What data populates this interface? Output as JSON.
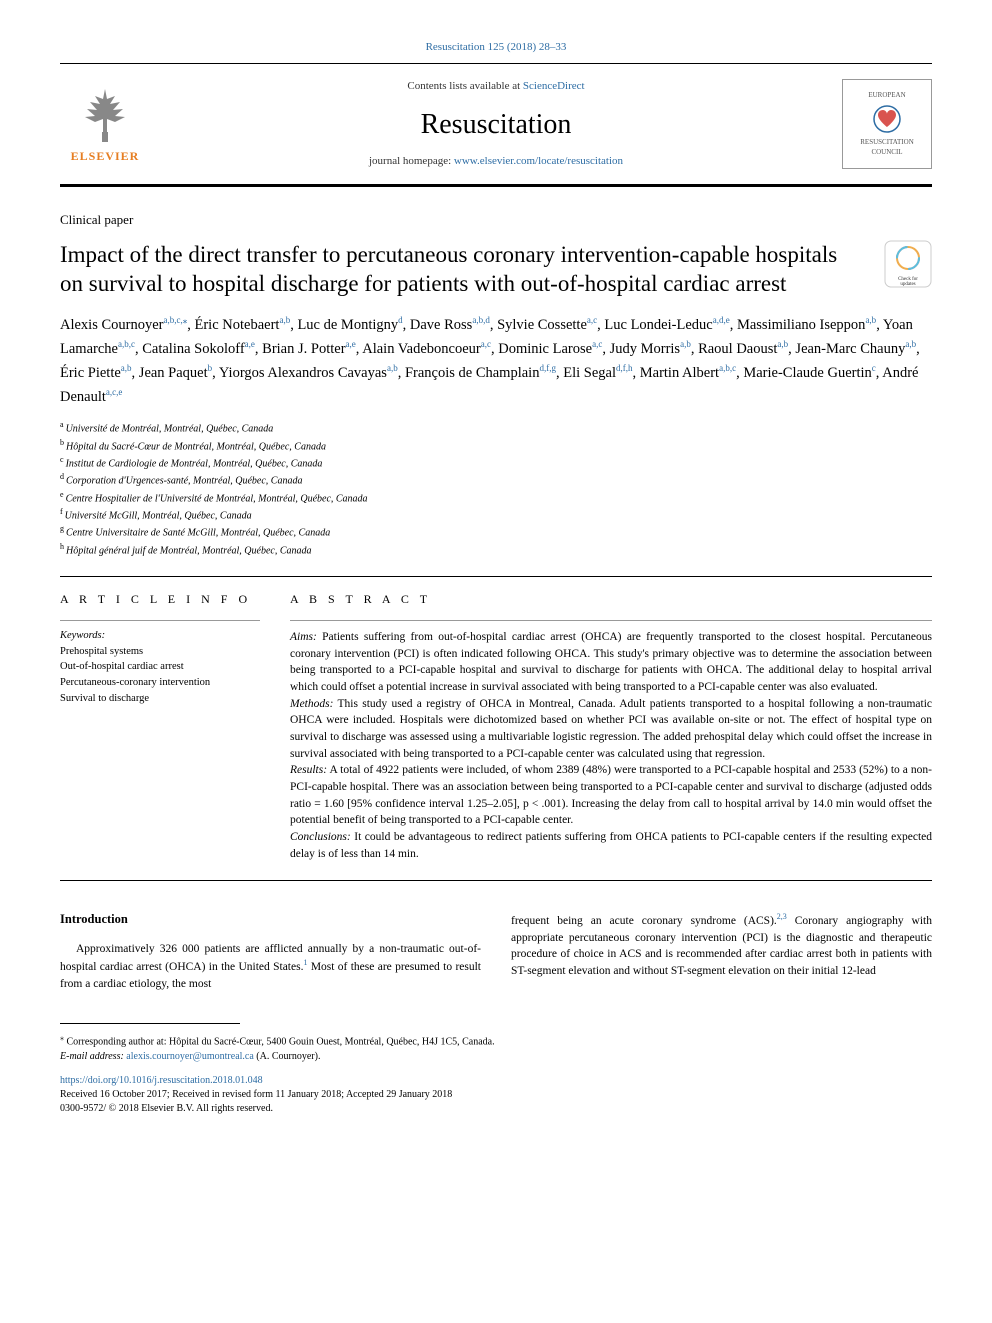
{
  "journal_ref": "Resuscitation 125 (2018) 28–33",
  "header": {
    "contents_prefix": "Contents lists available at ",
    "contents_link": "ScienceDirect",
    "journal_name": "Resuscitation",
    "homepage_prefix": "journal homepage: ",
    "homepage_link": "www.elsevier.com/locate/resuscitation",
    "elsevier_label": "ELSEVIER",
    "erc_top": "EUROPEAN",
    "erc_mid": "RESUSCITATION",
    "erc_bot": "COUNCIL"
  },
  "article_type": "Clinical paper",
  "title": "Impact of the direct transfer to percutaneous coronary intervention-capable hospitals on survival to hospital discharge for patients with out-of-hospital cardiac arrest",
  "crossmark_label": "Check for updates",
  "authors": [
    {
      "name": "Alexis Cournoyer",
      "aff": "a,b,c,",
      "star": "⁎"
    },
    {
      "name": "Éric Notebaert",
      "aff": "a,b"
    },
    {
      "name": "Luc de Montigny",
      "aff": "d"
    },
    {
      "name": "Dave Ross",
      "aff": "a,b,d"
    },
    {
      "name": "Sylvie Cossette",
      "aff": "a,c"
    },
    {
      "name": "Luc Londei-Leduc",
      "aff": "a,d,e"
    },
    {
      "name": "Massimiliano Iseppon",
      "aff": "a,b"
    },
    {
      "name": "Yoan Lamarche",
      "aff": "a,b,c"
    },
    {
      "name": "Catalina Sokoloff",
      "aff": "a,e"
    },
    {
      "name": "Brian J. Potter",
      "aff": "a,e"
    },
    {
      "name": "Alain Vadeboncoeur",
      "aff": "a,c"
    },
    {
      "name": "Dominic Larose",
      "aff": "a,c"
    },
    {
      "name": "Judy Morris",
      "aff": "a,b"
    },
    {
      "name": "Raoul Daoust",
      "aff": "a,b"
    },
    {
      "name": "Jean-Marc Chauny",
      "aff": "a,b"
    },
    {
      "name": "Éric Piette",
      "aff": "a,b"
    },
    {
      "name": "Jean Paquet",
      "aff": "b"
    },
    {
      "name": "Yiorgos Alexandros Cavayas",
      "aff": "a,b"
    },
    {
      "name": "François de Champlain",
      "aff": "d,f,g"
    },
    {
      "name": "Eli Segal",
      "aff": "d,f,h"
    },
    {
      "name": "Martin Albert",
      "aff": "a,b,c"
    },
    {
      "name": "Marie-Claude Guertin",
      "aff": "c"
    },
    {
      "name": "André Denault",
      "aff": "a,c,e"
    }
  ],
  "affiliations": [
    {
      "label": "a",
      "text": "Université de Montréal, Montréal, Québec, Canada"
    },
    {
      "label": "b",
      "text": "Hôpital du Sacré-Cœur de Montréal, Montréal, Québec, Canada"
    },
    {
      "label": "c",
      "text": "Institut de Cardiologie de Montréal, Montréal, Québec, Canada"
    },
    {
      "label": "d",
      "text": "Corporation d'Urgences-santé, Montréal, Québec, Canada"
    },
    {
      "label": "e",
      "text": "Centre Hospitalier de l'Université de Montréal, Montréal, Québec, Canada"
    },
    {
      "label": "f",
      "text": "Université McGill, Montréal, Québec, Canada"
    },
    {
      "label": "g",
      "text": "Centre Universitaire de Santé McGill, Montréal, Québec, Canada"
    },
    {
      "label": "h",
      "text": "Hôpital général juif de Montréal, Montréal, Québec, Canada"
    }
  ],
  "article_info_heading": "A R T I C L E  I N F O",
  "keywords_label": "Keywords:",
  "keywords": [
    "Prehospital systems",
    "Out-of-hospital cardiac arrest",
    "Percutaneous-coronary intervention",
    "Survival to discharge"
  ],
  "abstract_heading": "A B S T R A C T",
  "abstract": {
    "aims_label": "Aims:",
    "aims": " Patients suffering from out-of-hospital cardiac arrest (OHCA) are frequently transported to the closest hospital. Percutaneous coronary intervention (PCI) is often indicated following OHCA. This study's primary objective was to determine the association between being transported to a PCI-capable hospital and survival to discharge for patients with OHCA. The additional delay to hospital arrival which could offset a potential increase in survival associated with being transported to a PCI-capable center was also evaluated.",
    "methods_label": "Methods:",
    "methods": " This study used a registry of OHCA in Montreal, Canada. Adult patients transported to a hospital following a non-traumatic OHCA were included. Hospitals were dichotomized based on whether PCI was available on-site or not. The effect of hospital type on survival to discharge was assessed using a multivariable logistic regression. The added prehospital delay which could offset the increase in survival associated with being transported to a PCI-capable center was calculated using that regression.",
    "results_label": "Results:",
    "results": " A total of 4922 patients were included, of whom 2389 (48%) were transported to a PCI-capable hospital and 2533 (52%) to a non-PCI-capable hospital. There was an association between being transported to a PCI-capable center and survival to discharge (adjusted odds ratio = 1.60 [95% confidence interval 1.25–2.05], p < .001). Increasing the delay from call to hospital arrival by 14.0 min would offset the potential benefit of being transported to a PCI-capable center.",
    "conclusions_label": "Conclusions:",
    "conclusions": " It could be advantageous to redirect patients suffering from OHCA patients to PCI-capable centers if the resulting expected delay is of less than 14 min."
  },
  "introduction_heading": "Introduction",
  "intro_col1": "Approximatively 326 000 patients are afflicted annually by a non-traumatic out-of-hospital cardiac arrest (OHCA) in the United States.",
  "intro_col1_ref": "1",
  "intro_col1_cont": " Most of these are presumed to result from a cardiac etiology, the most",
  "intro_col2": "frequent being an acute coronary syndrome (ACS).",
  "intro_col2_ref": "2,3",
  "intro_col2_cont": " Coronary angiography with appropriate percutaneous coronary intervention (PCI) is the diagnostic and therapeutic procedure of choice in ACS and is recommended after cardiac arrest both in patients with ST-segment elevation and without ST-segment elevation on their initial 12-lead",
  "footnote": {
    "corr_marker": "⁎",
    "corr_text": " Corresponding author at: Hôpital du Sacré-Cœur, 5400 Gouin Ouest, Montréal, Québec, H4J 1C5, Canada.",
    "email_label": "E-mail address: ",
    "email": "alexis.cournoyer@umontreal.ca",
    "email_suffix": " (A. Cournoyer)."
  },
  "doi": "https://doi.org/10.1016/j.resuscitation.2018.01.048",
  "received": "Received 16 October 2017; Received in revised form 11 January 2018; Accepted 29 January 2018",
  "copyright": "0300-9572/ © 2018 Elsevier B.V. All rights reserved.",
  "colors": {
    "link": "#2e6da4",
    "elsevier_orange": "#e67e22",
    "text": "#000000",
    "bg": "#ffffff"
  }
}
